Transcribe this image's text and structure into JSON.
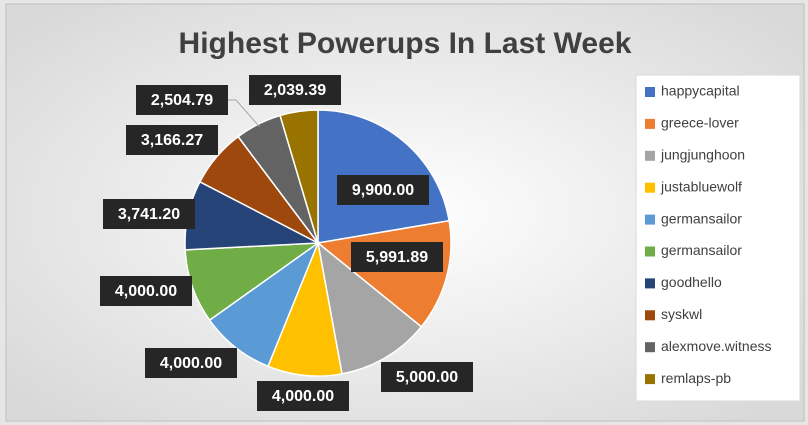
{
  "chart_data": {
    "type": "pie",
    "title": "Highest Powerups In Last Week",
    "categories": [
      "happycapital",
      "greece-lover",
      "jungjunghoon",
      "justabluewolf",
      "germansailor",
      "germansailor",
      "goodhello",
      "syskwl",
      "alexmove.witness",
      "remlaps-pb"
    ],
    "values": [
      9900,
      5991.89,
      5000,
      4000,
      4000,
      4000,
      3741.2,
      3166.27,
      2504.79,
      2039.39
    ],
    "value_labels": [
      "9,900.00",
      "5,991.89",
      "5,000.00",
      "4,000.00",
      "4,000.00",
      "4,000.00",
      "3,741.20",
      "3,166.27",
      "2,504.79",
      "2,039.39"
    ],
    "colors": [
      "#4472c4",
      "#ed7d31",
      "#a5a5a5",
      "#ffc000",
      "#5b9bd5",
      "#70ad47",
      "#264478",
      "#9e480e",
      "#636363",
      "#997300"
    ],
    "legend": "right"
  }
}
